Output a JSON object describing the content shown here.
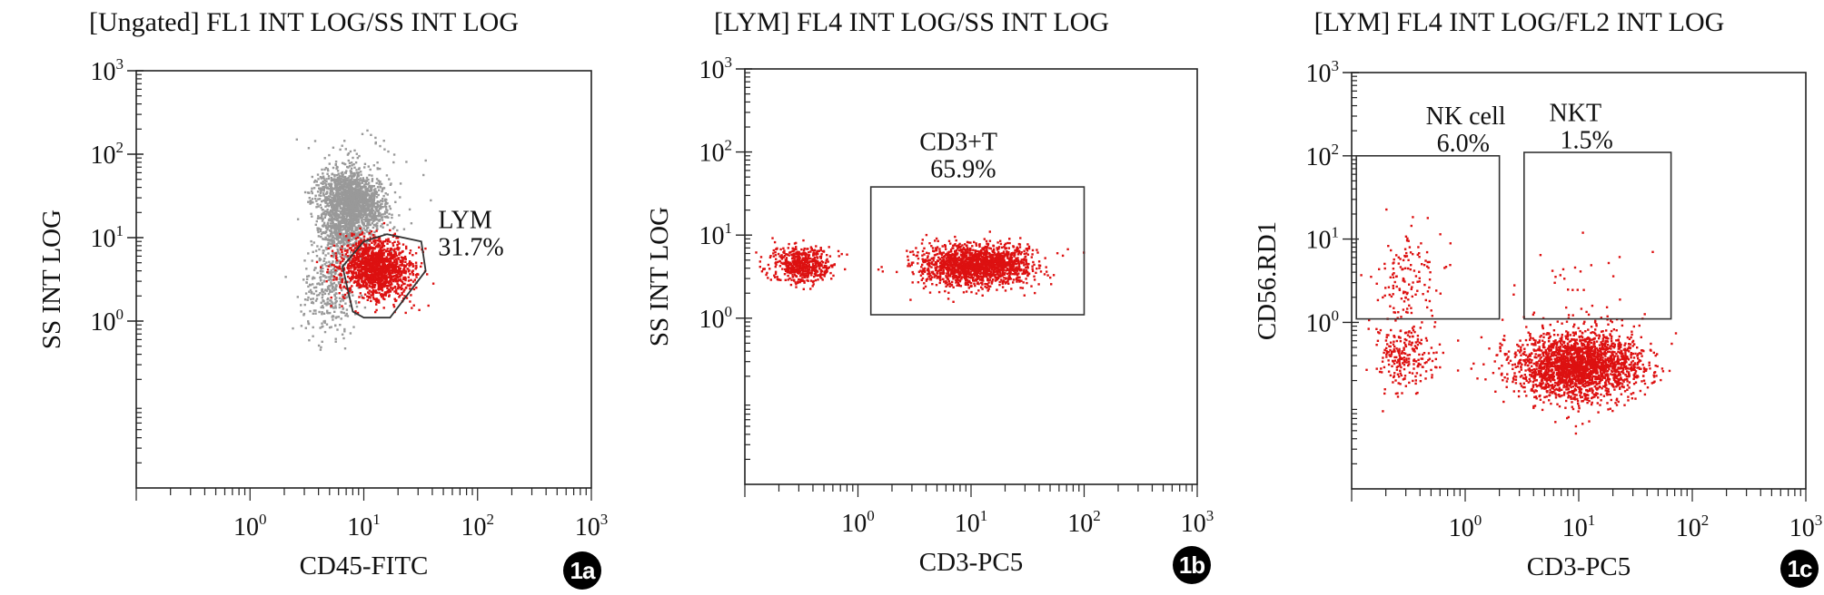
{
  "chart_data": [
    {
      "type": "scatter",
      "panel_label": "1a",
      "title": "[Ungated] FL1 INT LOG/SS INT LOG",
      "xlabel": "CD45-FITC",
      "ylabel": "SS INT LOG",
      "x_scale": "log",
      "y_scale": "log",
      "xlim": [
        0.1,
        1000
      ],
      "ylim": [
        0.01,
        1000
      ],
      "x_ticks": [
        {
          "v": 1,
          "base": "10",
          "exp": "0"
        },
        {
          "v": 10,
          "base": "10",
          "exp": "1"
        },
        {
          "v": 100,
          "base": "10",
          "exp": "2"
        },
        {
          "v": 1000,
          "base": "10",
          "exp": "3"
        }
      ],
      "y_ticks": [
        {
          "v": 1,
          "base": "10",
          "exp": "0"
        },
        {
          "v": 10,
          "base": "10",
          "exp": "1"
        },
        {
          "v": 100,
          "base": "10",
          "exp": "2"
        },
        {
          "v": 1000,
          "base": "10",
          "exp": "3"
        }
      ],
      "populations": [
        {
          "color": "#999999",
          "n": 1500,
          "cx": 8.0,
          "cy": 28,
          "sx": 0.13,
          "sy": 0.18,
          "rot": 0.6
        },
        {
          "color": "#999999",
          "n": 500,
          "cx": 6.5,
          "cy": 12,
          "sx": 0.1,
          "sy": 0.15,
          "rot": 0.3
        },
        {
          "color": "#999999",
          "n": 350,
          "cx": 5.0,
          "cy": 2.5,
          "sx": 0.12,
          "sy": 0.28,
          "rot": 0.0
        },
        {
          "color": "#999999",
          "n": 100,
          "cx": 9.0,
          "cy": 60,
          "sx": 0.25,
          "sy": 0.25,
          "rot": 0.0
        },
        {
          "color": "#dd1111",
          "n": 1500,
          "cx": 13.0,
          "cy": 4.2,
          "sx": 0.15,
          "sy": 0.17,
          "rot": 0.4
        }
      ],
      "gates": [
        {
          "name": "LYM",
          "value": "31.7%",
          "shape": "polygon",
          "points": [
            [
              6.5,
              4.5
            ],
            [
              10,
              9
            ],
            [
              16,
              11
            ],
            [
              32,
              9
            ],
            [
              35,
              4
            ],
            [
              17,
              1.1
            ],
            [
              10,
              1.1
            ],
            [
              8,
              1.3
            ]
          ],
          "label_at": [
            45,
            13
          ]
        }
      ]
    },
    {
      "type": "scatter",
      "panel_label": "1b",
      "title": "[LYM] FL4 INT LOG/SS INT LOG",
      "xlabel": "CD3-PC5",
      "ylabel": "SS INT LOG",
      "x_scale": "log",
      "y_scale": "log",
      "xlim": [
        0.1,
        1000
      ],
      "ylim": [
        0.01,
        1000
      ],
      "x_ticks": [
        {
          "v": 1,
          "base": "10",
          "exp": "0"
        },
        {
          "v": 10,
          "base": "10",
          "exp": "1"
        },
        {
          "v": 100,
          "base": "10",
          "exp": "2"
        },
        {
          "v": 1000,
          "base": "10",
          "exp": "3"
        }
      ],
      "y_ticks": [
        {
          "v": 1,
          "base": "10",
          "exp": "0"
        },
        {
          "v": 10,
          "base": "10",
          "exp": "1"
        },
        {
          "v": 100,
          "base": "10",
          "exp": "2"
        },
        {
          "v": 1000,
          "base": "10",
          "exp": "3"
        }
      ],
      "populations": [
        {
          "color": "#dd1111",
          "n": 550,
          "cx": 0.32,
          "cy": 4.5,
          "sx": 0.13,
          "sy": 0.11,
          "rot": 0.0
        },
        {
          "color": "#dd1111",
          "n": 1700,
          "cx": 11.0,
          "cy": 4.3,
          "sx": 0.24,
          "sy": 0.12,
          "rot": 0.0
        }
      ],
      "gates": [
        {
          "name": "CD3+T",
          "value": "65.9%",
          "shape": "rect",
          "x": [
            1.3,
            100
          ],
          "y": [
            1.1,
            38
          ],
          "label_at": [
            3.5,
            105
          ]
        }
      ]
    },
    {
      "type": "scatter",
      "panel_label": "1c",
      "title": "[LYM] FL4 INT LOG/FL2 INT LOG",
      "xlabel": "CD3-PC5",
      "ylabel": "CD56.RD1",
      "x_scale": "log",
      "y_scale": "log",
      "xlim": [
        0.1,
        1000
      ],
      "ylim": [
        0.01,
        1000
      ],
      "x_ticks": [
        {
          "v": 1,
          "base": "10",
          "exp": "0"
        },
        {
          "v": 10,
          "base": "10",
          "exp": "1"
        },
        {
          "v": 100,
          "base": "10",
          "exp": "2"
        },
        {
          "v": 1000,
          "base": "10",
          "exp": "3"
        }
      ],
      "y_ticks": [
        {
          "v": 1,
          "base": "10",
          "exp": "0"
        },
        {
          "v": 10,
          "base": "10",
          "exp": "1"
        },
        {
          "v": 100,
          "base": "10",
          "exp": "2"
        },
        {
          "v": 1000,
          "base": "10",
          "exp": "3"
        }
      ],
      "populations": [
        {
          "color": "#dd1111",
          "n": 2300,
          "cx": 10.0,
          "cy": 0.3,
          "sx": 0.28,
          "sy": 0.2,
          "rot": 0.0
        },
        {
          "color": "#dd1111",
          "n": 230,
          "cx": 0.3,
          "cy": 0.38,
          "sx": 0.14,
          "sy": 0.22,
          "rot": 0.0
        },
        {
          "color": "#dd1111",
          "n": 140,
          "cx": 0.32,
          "cy": 3.0,
          "sx": 0.14,
          "sy": 0.3,
          "rot": 0.0
        },
        {
          "color": "#dd1111",
          "n": 45,
          "cx": 9.0,
          "cy": 2.0,
          "sx": 0.28,
          "sy": 0.3,
          "rot": 0.0
        }
      ],
      "gates": [
        {
          "name": "NK cell",
          "value": "6.0%",
          "shape": "rect",
          "x": [
            0.11,
            2.0
          ],
          "y": [
            1.1,
            100
          ],
          "label_at": [
            0.45,
            240
          ]
        },
        {
          "name": "NKT",
          "value": "1.5%",
          "shape": "rect",
          "x": [
            3.3,
            65
          ],
          "y": [
            1.1,
            110
          ],
          "label_at": [
            5.5,
            260
          ]
        }
      ]
    }
  ]
}
